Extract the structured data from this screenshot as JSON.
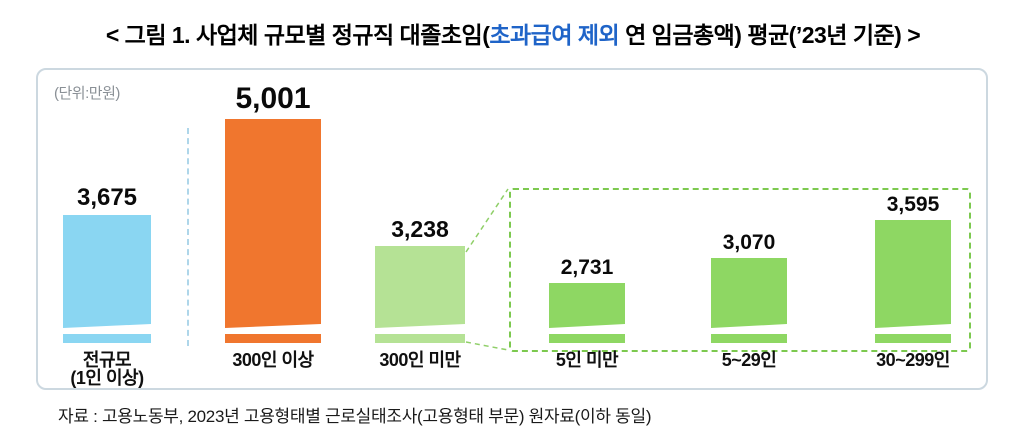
{
  "title": {
    "text_before": "< 그림 1. 사업체 규모별 정규직 대졸초임(",
    "highlight": "초과급여 제외",
    "text_after": " 연 임금총액) 평균(’23년 기준) >"
  },
  "unit_label": "(단위:만원)",
  "source_note": "자료 : 고용노동부, 2023년 고용형태별 근로실태조사(고용형태 부문) 원자료(이하 동일)",
  "colors": {
    "title_highlight": "#1f64c8",
    "bar_all_sizes": "#8ad6f2",
    "bar_300_plus": "#f0762e",
    "bar_under_300": "#b5e295",
    "bar_detail_green": "#8ed763",
    "group_box_border": "#7cc94f",
    "panel_border": "#ccd8e0"
  },
  "chart_data": {
    "type": "bar",
    "title": "< 그림 1. 사업체 규모별 정규직 대졸초임(초과급여 제외 연 임금총액) 평균(’23년 기준) >",
    "unit": "만원",
    "broken_axis": true,
    "categories": [
      "전규모 (1인 이상)",
      "300인 이상",
      "300인 미만",
      "5인 미만",
      "5~29인",
      "30~299인"
    ],
    "values": [
      3675,
      5001,
      3238,
      2731,
      3070,
      3595
    ],
    "breakdown_group": {
      "parent": "300인 미만",
      "members": [
        "5인 미만",
        "5~29인",
        "30~299인"
      ]
    },
    "bars": [
      {
        "label": "전규모",
        "sublabel": "(1인 이상)",
        "value": 3675,
        "value_label": "3,675",
        "color": "#8ad6f2"
      },
      {
        "label": "300인 이상",
        "sublabel": "",
        "value": 5001,
        "value_label": "5,001",
        "color": "#f0762e"
      },
      {
        "label": "300인 미만",
        "sublabel": "",
        "value": 3238,
        "value_label": "3,238",
        "color": "#b5e295"
      },
      {
        "label": "5인 미만",
        "sublabel": "",
        "value": 2731,
        "value_label": "2,731",
        "color": "#8ed763"
      },
      {
        "label": "5~29인",
        "sublabel": "",
        "value": 3070,
        "value_label": "3,070",
        "color": "#8ed763"
      },
      {
        "label": "30~299인",
        "sublabel": "",
        "value": 3595,
        "value_label": "3,595",
        "color": "#8ed763"
      }
    ]
  }
}
